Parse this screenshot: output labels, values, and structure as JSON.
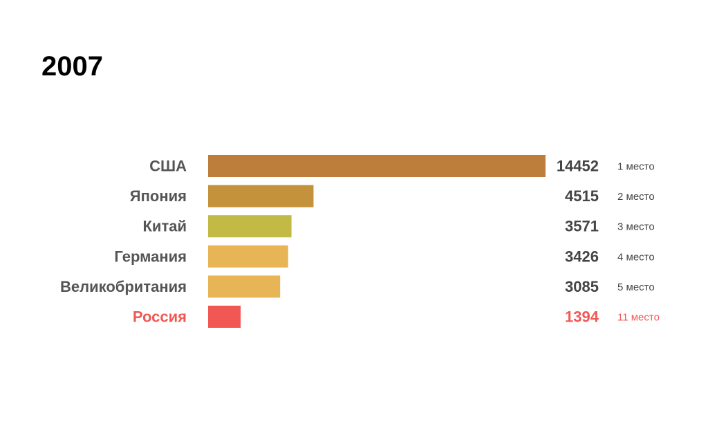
{
  "chart_data": {
    "type": "bar",
    "orientation": "horizontal",
    "title": "2007",
    "categories": [
      "США",
      "Япония",
      "Китай",
      "Германия",
      "Великобритания",
      "Россия"
    ],
    "values": [
      14452,
      4515,
      3571,
      3426,
      3085,
      1394
    ],
    "value_labels": [
      "14452",
      "4515",
      "3571",
      "3426",
      "3085",
      "1394"
    ],
    "ranks": [
      "1 место",
      "2 место",
      "3 место",
      "4 место",
      "5 место",
      "11 место"
    ],
    "bar_colors": [
      "#bd7d3b",
      "#c3923b",
      "#c3b945",
      "#e8b556",
      "#e8b556",
      "#f15854"
    ],
    "label_colors": [
      "#555555",
      "#555555",
      "#555555",
      "#555555",
      "#555555",
      "#f15854"
    ],
    "xlim": [
      0,
      14452
    ],
    "grid": false,
    "legend": "none"
  }
}
